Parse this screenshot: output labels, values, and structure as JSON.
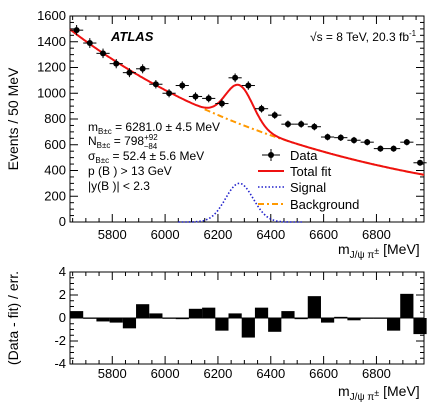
{
  "chart_data": [
    {
      "type": "scatter",
      "xlabel_main": "m",
      "xlabel_sub": "J/ψ π",
      "xlabel_sup": "±",
      "xlabel_unit": "[MeV]",
      "ylabel": "Events / 50 MeV",
      "xlim": [
        5640,
        6980
      ],
      "ylim": [
        0,
        1600
      ],
      "x_ticks": [
        5800,
        6000,
        6200,
        6400,
        6600,
        6800
      ],
      "y_ticks": [
        0,
        200,
        400,
        600,
        800,
        1000,
        1200,
        1400,
        1600
      ],
      "experiment_label": "ATLAS",
      "energy_label": "√s = 8 TeV, 20.3 fb",
      "energy_sup": "-1",
      "fit_params": {
        "mass": {
          "sym": "m",
          "sub": "B±c",
          "text": " = 6281.0 ± 4.5 MeV"
        },
        "yield": {
          "sym": "N",
          "sub": "B±c",
          "text": " = 798",
          "sup": "+92",
          "subscript_err": "−84"
        },
        "width": {
          "sym": "σ",
          "sub": "B±c",
          "text": " = 52.4 ± 5.6 MeV"
        },
        "pt_cut": "p  (B ) > 13 GeV",
        "y_cut": "|y(B )| < 2.3"
      },
      "legend": [
        {
          "label": "Data",
          "style": "marker"
        },
        {
          "label": "Total fit",
          "style": "solid",
          "color": "#ee1111"
        },
        {
          "label": "Signal",
          "style": "dotted",
          "color": "#2222cc"
        },
        {
          "label": "Background",
          "style": "dashdot",
          "color": "#ff9900"
        }
      ],
      "data_points": {
        "x": [
          5665,
          5715,
          5765,
          5815,
          5865,
          5915,
          5965,
          6015,
          6065,
          6115,
          6165,
          6215,
          6265,
          6315,
          6365,
          6415,
          6465,
          6515,
          6565,
          6615,
          6665,
          6715,
          6765,
          6815,
          6865,
          6915,
          6965
        ],
        "y": [
          1490,
          1390,
          1310,
          1230,
          1160,
          1190,
          1070,
          1000,
          1060,
          975,
          960,
          920,
          1120,
          1060,
          880,
          830,
          760,
          760,
          740,
          660,
          655,
          635,
          620,
          570,
          570,
          620,
          460
        ],
        "yerr": [
          40,
          38,
          37,
          36,
          35,
          35,
          33,
          32,
          33,
          32,
          31,
          31,
          34,
          33,
          30,
          29,
          28,
          28,
          28,
          26,
          26,
          26,
          25,
          24,
          24,
          25,
          22
        ]
      },
      "signal_model": {
        "mean": 6281.0,
        "sigma": 52.4,
        "peak": 300
      },
      "background_model": {
        "a": 1480,
        "b": 0.00105,
        "x0": 5650
      },
      "series_colors": {
        "fit": "#ee1111",
        "signal": "#2222cc",
        "background": "#ff9900",
        "data": "#000000"
      }
    },
    {
      "type": "bar",
      "ylabel": "(Data - fit) / err.",
      "xlabel_main": "m",
      "xlabel_sub": "J/ψ π",
      "xlabel_sup": "±",
      "xlabel_unit": "[MeV]",
      "xlim": [
        5640,
        6980
      ],
      "ylim": [
        -4,
        4
      ],
      "x_ticks": [
        5800,
        6000,
        6200,
        6400,
        6600,
        6800
      ],
      "y_ticks": [
        -4,
        -2,
        0,
        2,
        4
      ],
      "x": [
        5665,
        5715,
        5765,
        5815,
        5865,
        5915,
        5965,
        6015,
        6065,
        6115,
        6165,
        6215,
        6265,
        6315,
        6365,
        6415,
        6465,
        6515,
        6565,
        6615,
        6665,
        6715,
        6765,
        6815,
        6865,
        6915,
        6965
      ],
      "values": [
        0.6,
        0.0,
        -0.3,
        -0.4,
        -0.9,
        1.2,
        0.4,
        0.0,
        -0.1,
        0.8,
        0.9,
        -1.1,
        0.4,
        -1.7,
        0.9,
        -1.2,
        0.6,
        -0.1,
        1.9,
        -0.4,
        0.1,
        -0.2,
        0.0,
        0.0,
        -1.1,
        2.1,
        -1.4
      ]
    }
  ]
}
